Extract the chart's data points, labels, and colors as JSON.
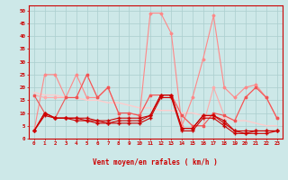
{
  "x": [
    0,
    1,
    2,
    3,
    4,
    5,
    6,
    7,
    8,
    9,
    10,
    11,
    12,
    13,
    14,
    15,
    16,
    17,
    18,
    19,
    20,
    21,
    22,
    23
  ],
  "series_dark1": [
    3,
    10,
    8,
    8,
    8,
    8,
    7,
    7,
    8,
    8,
    8,
    9,
    17,
    17,
    4,
    4,
    9,
    9,
    7,
    3,
    3,
    3,
    3,
    3
  ],
  "series_dark2": [
    3,
    10,
    8,
    8,
    8,
    7,
    7,
    6,
    7,
    7,
    7,
    9,
    17,
    17,
    4,
    4,
    9,
    9,
    6,
    3,
    2,
    3,
    3,
    3
  ],
  "series_dark3": [
    3,
    9,
    8,
    8,
    7,
    7,
    6,
    6,
    6,
    6,
    6,
    8,
    16,
    16,
    3,
    3,
    8,
    8,
    5,
    2,
    2,
    2,
    2,
    3
  ],
  "series_med": [
    17,
    10,
    8,
    16,
    16,
    25,
    16,
    20,
    10,
    10,
    9,
    17,
    17,
    17,
    9,
    5,
    5,
    10,
    9,
    7,
    16,
    20,
    16,
    8
  ],
  "series_hi": [
    3,
    25,
    25,
    16,
    25,
    16,
    16,
    20,
    10,
    10,
    9,
    49,
    49,
    41,
    5,
    16,
    31,
    48,
    20,
    16,
    20,
    21,
    16,
    8
  ],
  "series_lo": [
    17,
    16,
    16,
    16,
    16,
    25,
    16,
    20,
    10,
    10,
    9,
    17,
    17,
    17,
    9,
    5,
    5,
    20,
    9,
    7,
    16,
    20,
    16,
    8
  ],
  "series_trend": [
    18,
    17,
    17,
    16,
    16,
    15,
    15,
    14,
    14,
    13,
    12,
    12,
    11,
    11,
    10,
    10,
    9,
    8,
    8,
    7,
    7,
    6,
    5,
    5
  ],
  "bg": "#cde8e8",
  "grid_c": "#aacece",
  "c_dark": "#cc0000",
  "c_med": "#ee5555",
  "c_hi": "#ff8888",
  "c_lo": "#ffaaaa",
  "c_trend": "#ffcccc",
  "yticks": [
    0,
    5,
    10,
    15,
    20,
    25,
    30,
    35,
    40,
    45,
    50
  ],
  "ylim": [
    0,
    52
  ],
  "xlim": [
    -0.5,
    23.5
  ],
  "xlabel": "Vent moyen/en rafales ( km/h )"
}
